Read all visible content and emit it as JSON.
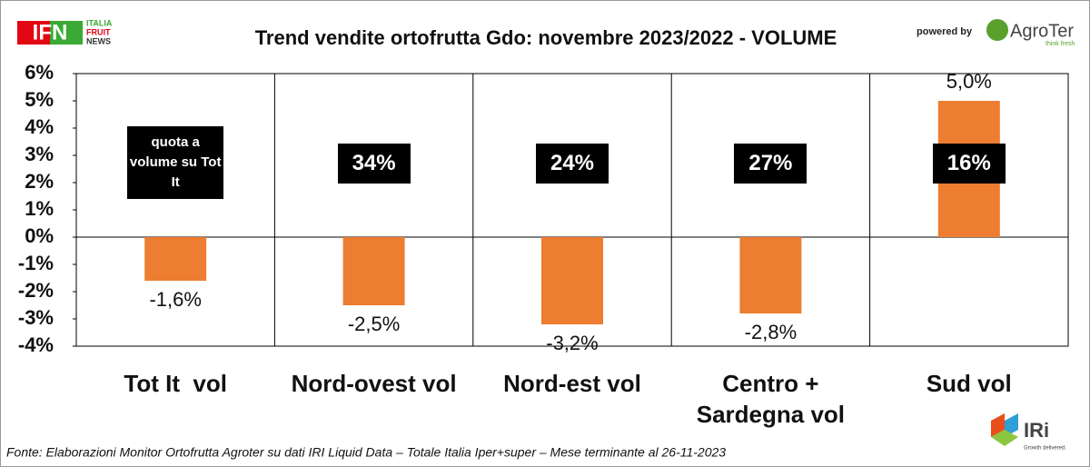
{
  "chart_data": {
    "type": "bar",
    "title": "Trend vendite ortofrutta Gdo: novembre 2023/2022 - VOLUME",
    "categories": [
      "Tot It  vol",
      "Nord-ovest vol",
      "Nord-est vol",
      "Centro + Sardegna vol",
      "Sud vol"
    ],
    "values": [
      -1.6,
      -2.5,
      -3.2,
      -2.8,
      5.0
    ],
    "value_labels": [
      "-1,6%",
      "-2,5%",
      "-3,2%",
      "-2,8%",
      "5,0%"
    ],
    "color": "#ed7d31",
    "ylim": [
      -4,
      6
    ],
    "yticks": [
      {
        "value": -4,
        "label": "-4%"
      },
      {
        "value": -3,
        "label": "-3%"
      },
      {
        "value": -2,
        "label": "-2%"
      },
      {
        "value": -1,
        "label": "-1%"
      },
      {
        "value": 0,
        "label": "0%"
      },
      {
        "value": 1,
        "label": "1%"
      },
      {
        "value": 2,
        "label": "2%"
      },
      {
        "value": 3,
        "label": "3%"
      },
      {
        "value": 4,
        "label": "4%"
      },
      {
        "value": 5,
        "label": "5%"
      },
      {
        "value": 6,
        "label": "6%"
      }
    ],
    "grid": false,
    "box_labels": [
      "quota a volume su Tot It",
      "34%",
      "24%",
      "27%",
      "16%"
    ],
    "source": "Fonte: Elaborazioni Monitor Ortofrutta Agroter su dati IRI Liquid Data – Totale Italia Iper+super – Mese terminante al 26-11-2023",
    "logos": {
      "ifn": "IFN",
      "ifn_lines": [
        "ITALIA",
        "FRUIT",
        "NEWS"
      ],
      "powered": "powered by",
      "agroter": "AgroTer",
      "agroter_tag": "think fresh",
      "iri": "IRi",
      "iri_tag": "Growth delivered."
    }
  }
}
